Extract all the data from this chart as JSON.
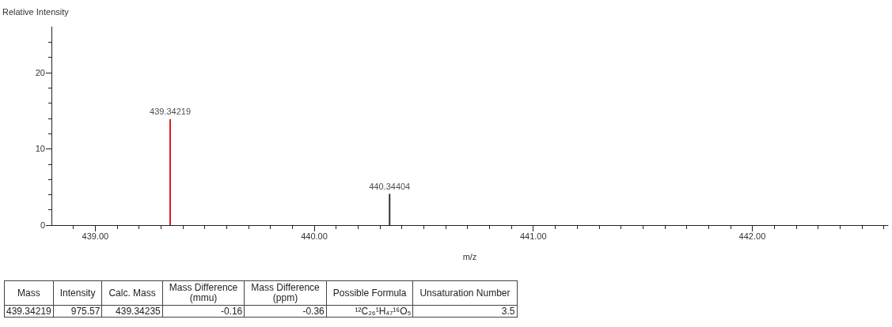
{
  "chart_data": [
    {
      "type": "bar",
      "ylabel": "Relative Intensity",
      "xlabel": "m/z",
      "x": [
        439.34219,
        440.34404
      ],
      "values": [
        13.9,
        4.1
      ],
      "colors": [
        "#d42020",
        "#333333"
      ],
      "annotations": [
        {
          "text": "439.34219",
          "x": 439.34219,
          "y": 13.9
        },
        {
          "text": "440.34404",
          "x": 440.34404,
          "y": 4.1
        }
      ],
      "xlim": [
        438.8,
        442.62
      ],
      "xticks": [
        {
          "value": 438.9,
          "label": null
        },
        {
          "value": 439,
          "label": "439.00"
        },
        {
          "value": 439.1,
          "label": null
        },
        {
          "value": 439.2,
          "label": null
        },
        {
          "value": 439.3,
          "label": null
        },
        {
          "value": 439.4,
          "label": null
        },
        {
          "value": 439.5,
          "label": null
        },
        {
          "value": 439.6,
          "label": null
        },
        {
          "value": 439.7,
          "label": null
        },
        {
          "value": 439.8,
          "label": null
        },
        {
          "value": 439.9,
          "label": null
        },
        {
          "value": 440,
          "label": "440.00"
        },
        {
          "value": 440.1,
          "label": null
        },
        {
          "value": 440.2,
          "label": null
        },
        {
          "value": 440.3,
          "label": null
        },
        {
          "value": 440.4,
          "label": null
        },
        {
          "value": 440.5,
          "label": null
        },
        {
          "value": 440.6,
          "label": null
        },
        {
          "value": 440.7,
          "label": null
        },
        {
          "value": 440.8,
          "label": null
        },
        {
          "value": 440.9,
          "label": null
        },
        {
          "value": 441,
          "label": "441.00"
        },
        {
          "value": 441.1,
          "label": null
        },
        {
          "value": 441.2,
          "label": null
        },
        {
          "value": 441.3,
          "label": null
        },
        {
          "value": 441.4,
          "label": null
        },
        {
          "value": 441.5,
          "label": null
        },
        {
          "value": 441.6,
          "label": null
        },
        {
          "value": 441.7,
          "label": null
        },
        {
          "value": 441.8,
          "label": null
        },
        {
          "value": 441.9,
          "label": null
        },
        {
          "value": 442,
          "label": "442.00"
        },
        {
          "value": 442.1,
          "label": null
        },
        {
          "value": 442.2,
          "label": null
        },
        {
          "value": 442.3,
          "label": null
        },
        {
          "value": 442.4,
          "label": null
        },
        {
          "value": 442.5,
          "label": null
        },
        {
          "value": 442.6,
          "label": null
        }
      ],
      "ylim": [
        0,
        26
      ],
      "yticks": [
        0,
        {
          "value": 2,
          "label": null
        },
        {
          "value": 4,
          "label": null
        },
        {
          "value": 6,
          "label": null
        },
        {
          "value": 8,
          "label": null
        },
        10,
        {
          "value": 12,
          "label": null
        },
        {
          "value": 14,
          "label": null
        },
        {
          "value": 16,
          "label": null
        },
        {
          "value": 18,
          "label": null
        },
        20,
        {
          "value": 22,
          "label": null
        },
        {
          "value": 24,
          "label": null
        }
      ],
      "grid": false
    },
    {
      "type": "other",
      "categories": [
        "Mass",
        "Intensity",
        "Calc. Mass",
        "Mass Difference\n(mmu)",
        "Mass Difference\n(ppm)",
        "Possible Formula",
        "Unsaturation Number"
      ],
      "annotations": [
        "439.34219",
        "975.57",
        "439.34235",
        "-0.16",
        "-0.36",
        "¹²C₂₆¹H₄₇¹⁶O₅",
        "3.5"
      ]
    }
  ]
}
